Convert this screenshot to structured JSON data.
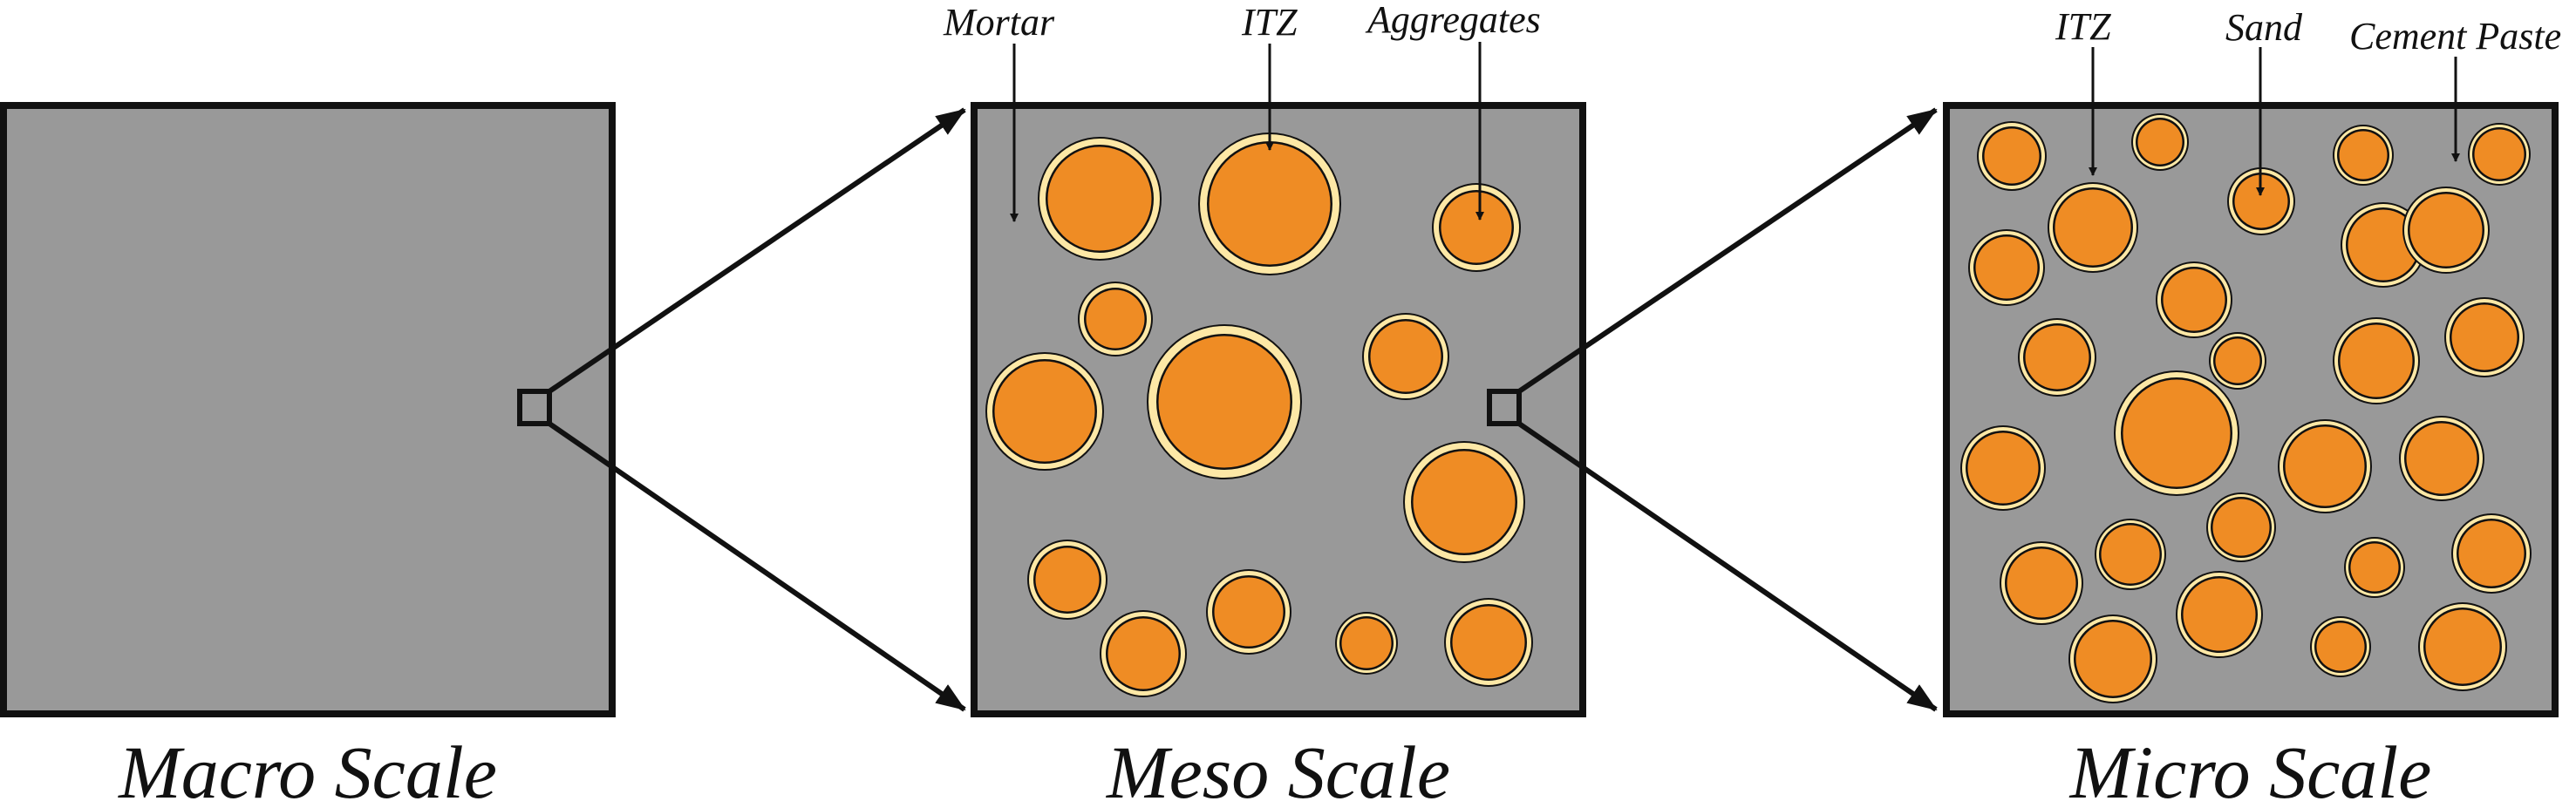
{
  "scales": {
    "macro": "Macro Scale",
    "meso": "Meso Scale",
    "micro": "Micro Scale"
  },
  "meso_labels": {
    "mortar": "Mortar",
    "itz": "ITZ",
    "aggregates": "Aggregates"
  },
  "micro_labels": {
    "itz": "ITZ",
    "sand": "Sand",
    "cement_paste": "Cement Paste"
  },
  "colors": {
    "matrix": "#999999",
    "outline": "#111111",
    "itz": "#fde8a6",
    "aggregate": "#ef8c24"
  }
}
